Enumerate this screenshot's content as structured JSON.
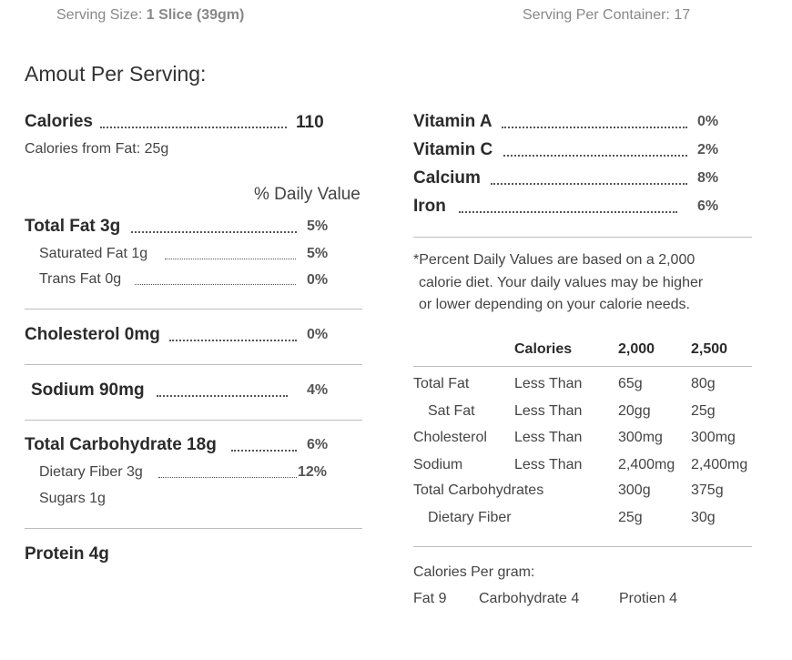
{
  "header": {
    "serving_size_label": "Serving Size:",
    "serving_size_value": "1 Slice (39gm)",
    "servings_label": "Serving Per Container:",
    "servings_value": "17"
  },
  "amount_heading": "Amout Per Serving:",
  "calories": {
    "label": "Calories",
    "value": "110"
  },
  "calories_from_fat": "Calories from Fat: 25g",
  "daily_value_heading": "% Daily Value",
  "nutrients": {
    "total_fat": {
      "label": "Total Fat 3g",
      "pct": "5%"
    },
    "saturated_fat": {
      "label": "Saturated Fat 1g",
      "pct": "5%"
    },
    "trans_fat": {
      "label": "Trans Fat 0g",
      "pct": "0%"
    },
    "cholesterol": {
      "label": "Cholesterol 0mg",
      "pct": "0%"
    },
    "sodium": {
      "label": "Sodium 90mg",
      "pct": "4%"
    },
    "total_carb": {
      "label": "Total Carbohydrate 18g",
      "pct": "6%"
    },
    "dietary_fiber": {
      "label": "Dietary Fiber 3g",
      "pct": "12%"
    },
    "sugars": {
      "label": "Sugars 1g"
    },
    "protein": {
      "label": "Protein 4g"
    }
  },
  "vitamins": [
    {
      "label": "Vitamin A",
      "pct": "0%"
    },
    {
      "label": "Vitamin C",
      "pct": "2%"
    },
    {
      "label": "Calcium",
      "pct": "8%"
    },
    {
      "label": "Iron",
      "pct": "6%"
    }
  ],
  "footnote": {
    "line1": "*Percent Daily Values are based on a 2,000",
    "line2": "calorie diet. Your daily values may be higher",
    "line3": "or lower depending on your calorie needs."
  },
  "dv_table": {
    "headers": [
      "Calories",
      "2,000",
      "2,500"
    ],
    "rows": [
      [
        "Total Fat",
        "Less Than",
        "65g",
        "80g"
      ],
      [
        "Sat Fat",
        "Less Than",
        "20gg",
        "25g"
      ],
      [
        "Cholesterol",
        "Less Than",
        "300mg",
        "300mg"
      ],
      [
        "Sodium",
        "Less Than",
        "2,400mg",
        "2,400mg"
      ],
      [
        "Total Carbohydrates",
        "",
        "300g",
        "375g"
      ],
      [
        "Dietary Fiber",
        "",
        "25g",
        "30g"
      ]
    ]
  },
  "calories_per_gram": {
    "label": "Calories Per gram:",
    "fat": "Fat 9",
    "carb": "Carbohydrate 4",
    "protein": "Protien 4"
  }
}
